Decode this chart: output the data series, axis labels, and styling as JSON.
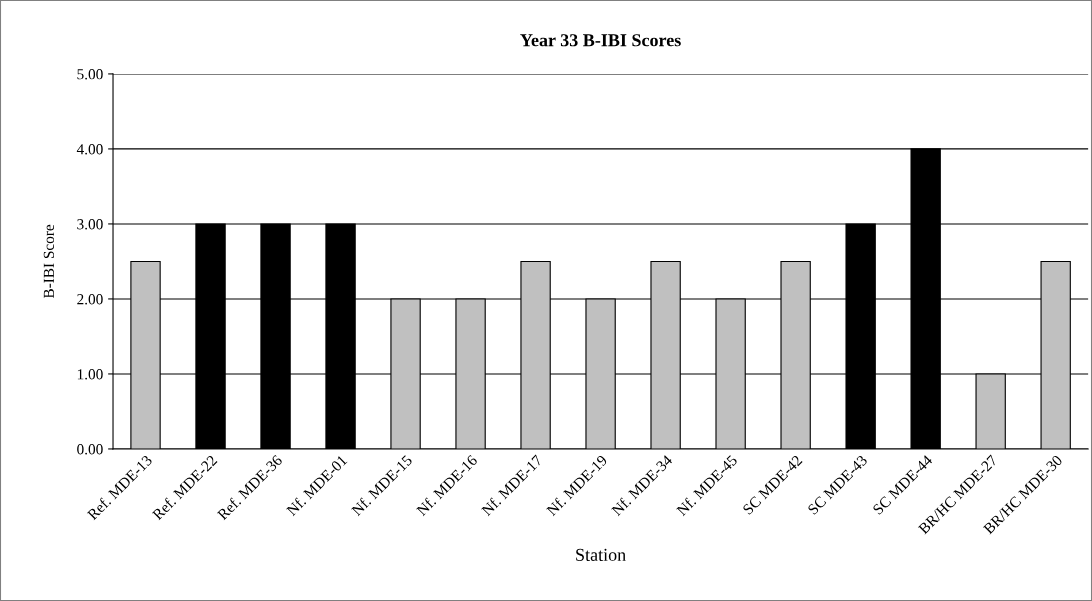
{
  "chart_data": {
    "type": "bar",
    "title": "Year 33 B-IBI Scores",
    "xlabel": "Station",
    "ylabel": "B-IBI Score",
    "categories": [
      "Ref. MDE-13",
      "Ref. MDE-22",
      "Ref. MDE-36",
      "Nf. MDE-01",
      "Nf. MDE-15",
      "Nf. MDE-16",
      "Nf. MDE-17",
      "Nf. MDE-19",
      "Nf. MDE-34",
      "Nf. MDE-45",
      "SC MDE-42",
      "SC MDE-43",
      "SC MDE-44",
      "BR/HC MDE-27",
      "BR/HC MDE-30"
    ],
    "values": [
      2.5,
      3,
      3,
      3,
      2,
      2,
      2.5,
      2,
      2.5,
      2,
      2.5,
      3,
      4,
      1,
      2.5
    ],
    "colors": [
      "#c0c0c0",
      "#000000",
      "#000000",
      "#000000",
      "#c0c0c0",
      "#c0c0c0",
      "#c0c0c0",
      "#c0c0c0",
      "#c0c0c0",
      "#c0c0c0",
      "#c0c0c0",
      "#000000",
      "#000000",
      "#c0c0c0",
      "#c0c0c0"
    ],
    "ylim": [
      0,
      5
    ],
    "yticks": [
      {
        "value": 0,
        "label": "0.00"
      },
      {
        "value": 1,
        "label": "1.00"
      },
      {
        "value": 2,
        "label": "2.00"
      },
      {
        "value": 3,
        "label": "3.00"
      },
      {
        "value": 4,
        "label": "4.00"
      },
      {
        "value": 5,
        "label": "5.00"
      }
    ],
    "grid": "y",
    "legend": false
  }
}
